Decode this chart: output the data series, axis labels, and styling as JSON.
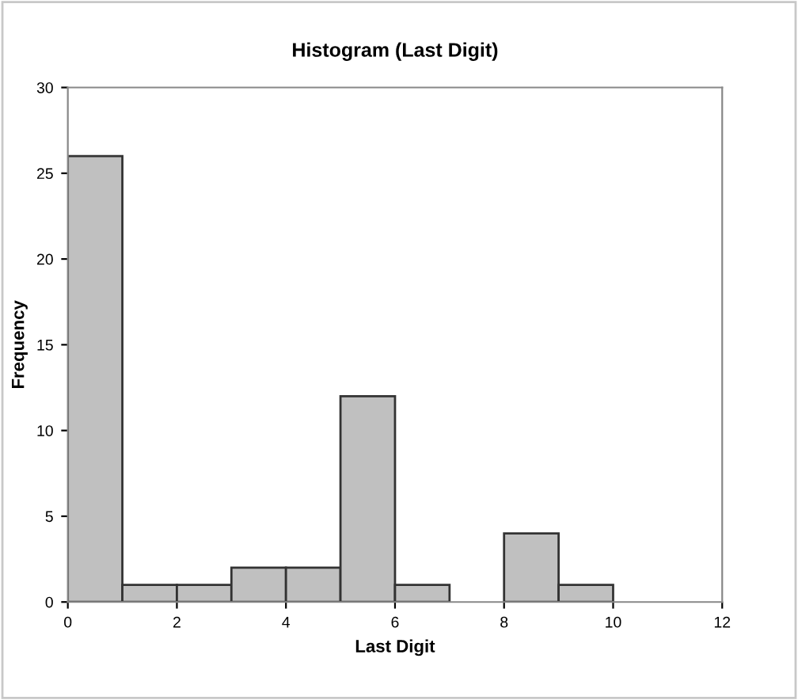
{
  "chart_data": {
    "type": "histogram",
    "title": "Histogram (Last Digit)",
    "xlabel": "Last Digit",
    "ylabel": "Frequency",
    "bins": [
      0,
      1,
      2,
      3,
      4,
      5,
      6,
      7,
      8,
      9,
      10
    ],
    "values": [
      26,
      1,
      1,
      2,
      2,
      12,
      1,
      0,
      4,
      1
    ],
    "color": "#c0c0c0",
    "xlim": [
      0,
      12
    ],
    "xticks": [
      0,
      2,
      4,
      6,
      8,
      10,
      12
    ],
    "ylim": [
      0,
      30
    ],
    "yticks": [
      0,
      5,
      10,
      15,
      20,
      25,
      30
    ],
    "grid": false,
    "legend": false
  }
}
